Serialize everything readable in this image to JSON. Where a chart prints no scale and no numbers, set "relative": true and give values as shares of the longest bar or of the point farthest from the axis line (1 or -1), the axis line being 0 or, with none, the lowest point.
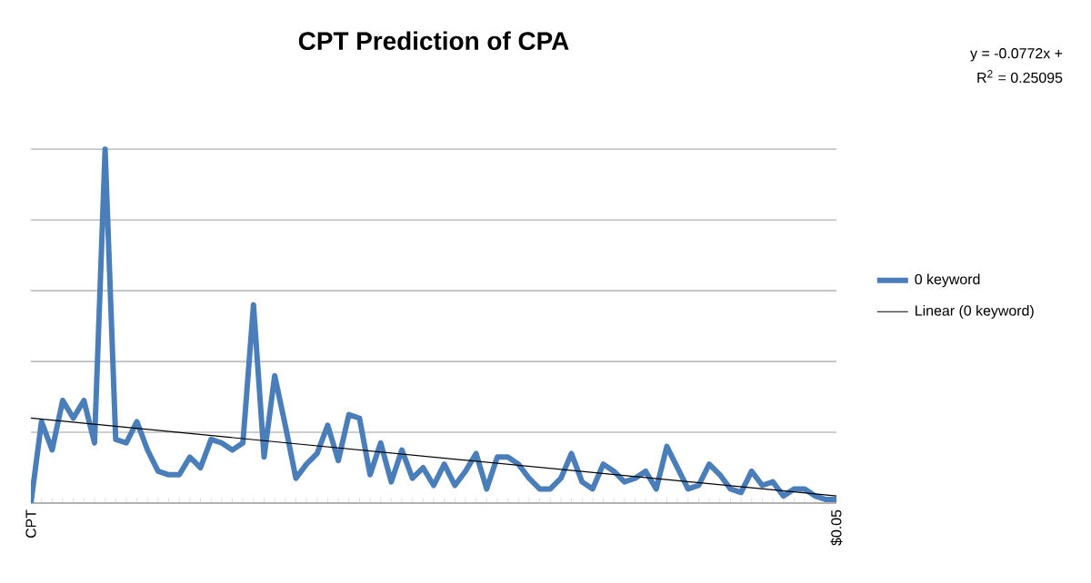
{
  "chart_data": {
    "type": "line",
    "title": "CPT Prediction of CPA",
    "categories": [
      "CPT",
      null,
      null,
      null,
      null,
      null,
      null,
      null,
      null,
      null,
      null,
      null,
      null,
      null,
      null,
      null,
      null,
      null,
      null,
      null,
      null,
      null,
      null,
      null,
      null,
      null,
      null,
      null,
      null,
      null,
      null,
      null,
      null,
      null,
      null,
      null,
      null,
      null,
      null,
      null,
      null,
      null,
      null,
      null,
      null,
      null,
      null,
      null,
      null,
      null,
      null,
      null,
      null,
      null,
      null,
      null,
      null,
      null,
      null,
      null,
      null,
      null,
      null,
      null,
      null,
      null,
      null,
      null,
      null,
      null,
      null,
      null,
      null,
      null,
      null,
      null,
      "$0.05"
    ],
    "relative": true,
    "series": [
      {
        "name": "0 keyword",
        "color": "#4a7ebb",
        "values": [
          0,
          0.23,
          0.15,
          0.29,
          0.24,
          0.29,
          0.17,
          1,
          0.18,
          0.17,
          0.23,
          0.15,
          0.09,
          0.08,
          0.08,
          0.13,
          0.1,
          0.18,
          0.17,
          0.15,
          0.17,
          0.56,
          0.13,
          0.36,
          0.22,
          0.07,
          0.11,
          0.14,
          0.22,
          0.12,
          0.25,
          0.24,
          0.08,
          0.17,
          0.06,
          0.15,
          0.07,
          0.1,
          0.05,
          0.11,
          0.05,
          0.09,
          0.14,
          0.04,
          0.13,
          0.13,
          0.11,
          0.07,
          0.04,
          0.04,
          0.07,
          0.14,
          0.06,
          0.04,
          0.11,
          0.09,
          0.06,
          0.07,
          0.09,
          0.04,
          0.16,
          0.1,
          0.04,
          0.05,
          0.11,
          0.08,
          0.04,
          0.03,
          0.09,
          0.05,
          0.06,
          0.02,
          0.04,
          0.04,
          0.02,
          0.01,
          0.01
        ]
      },
      {
        "name": "Linear (0 keyword)",
        "type": "line",
        "color": "#000000",
        "values": [
          0.24,
          null,
          null,
          null,
          null,
          null,
          null,
          null,
          null,
          null,
          null,
          null,
          null,
          null,
          null,
          null,
          null,
          null,
          null,
          null,
          null,
          null,
          null,
          null,
          null,
          null,
          null,
          null,
          null,
          null,
          null,
          null,
          null,
          null,
          null,
          null,
          null,
          null,
          null,
          null,
          null,
          null,
          null,
          null,
          null,
          null,
          null,
          null,
          null,
          null,
          null,
          null,
          null,
          null,
          null,
          null,
          null,
          null,
          null,
          null,
          null,
          null,
          null,
          null,
          null,
          null,
          null,
          null,
          null,
          null,
          null,
          null,
          null,
          null,
          null,
          null,
          0.02
        ]
      }
    ],
    "annotations": [
      "y = -0.0772x +",
      "R$^{2}$ = 0.25095"
    ],
    "grid": "y",
    "legend": "right",
    "marker": "none",
    "line_style": "solid"
  }
}
